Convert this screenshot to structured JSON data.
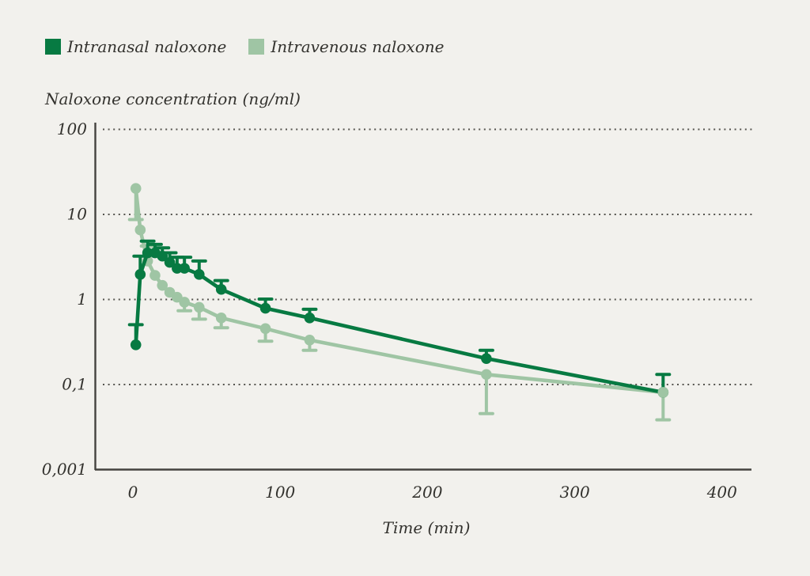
{
  "figure": {
    "background_color": "#f2f1ed",
    "text_color": "#33322e",
    "axis_color": "#44433f",
    "grid_color": "#55544e"
  },
  "legend": {
    "position": "top-left",
    "items": [
      {
        "label": "Intranasal naloxone",
        "color": "#077a42",
        "swatch": "square"
      },
      {
        "label": "Intravenous naloxone",
        "color": "#9fc5a4",
        "swatch": "square"
      }
    ]
  },
  "chart_data": {
    "type": "line",
    "title": "Naloxone concentration (ng/ml)",
    "ylabel": "Naloxone concentration (ng/ml)",
    "xlabel": "Time (min)",
    "y_scale": "log",
    "grid": "dotted-horizontal",
    "legend_position": "top-left",
    "xlim": [
      0,
      400
    ],
    "x_ticks": [
      0,
      100,
      200,
      300,
      400
    ],
    "y_ticks": [
      {
        "label": "100",
        "value": 100,
        "grid": true,
        "at_axis_base": false
      },
      {
        "label": "10",
        "value": 10,
        "grid": true,
        "at_axis_base": false
      },
      {
        "label": "1",
        "value": 1,
        "grid": true,
        "at_axis_base": false
      },
      {
        "label": "0,1",
        "value": 0.1,
        "grid": true,
        "at_axis_base": false
      },
      {
        "label": "0,001",
        "value": 0.001,
        "grid": false,
        "at_axis_base": true
      }
    ],
    "x": [
      2,
      5,
      10,
      15,
      20,
      25,
      30,
      35,
      45,
      60,
      90,
      120,
      240,
      360
    ],
    "series": [
      {
        "name": "Intravenous naloxone",
        "color": "#9fc5a4",
        "values": [
          20,
          6.5,
          2.8,
          1.9,
          1.45,
          1.2,
          1.05,
          0.92,
          0.8,
          0.6,
          0.45,
          0.33,
          0.13,
          0.08
        ],
        "err_low": [
          8.6,
          null,
          null,
          null,
          null,
          null,
          null,
          0.73,
          0.58,
          0.46,
          0.32,
          0.25,
          0.045,
          0.038
        ],
        "err_high": [
          null,
          null,
          4.2,
          null,
          null,
          null,
          null,
          null,
          null,
          null,
          null,
          null,
          null,
          null
        ]
      },
      {
        "name": "Intranasal naloxone",
        "color": "#077a42",
        "values": [
          0.29,
          1.95,
          3.5,
          3.5,
          3.2,
          2.7,
          2.3,
          2.3,
          1.95,
          1.3,
          0.78,
          0.6,
          0.2,
          0.08
        ],
        "err_low": [
          null,
          null,
          null,
          null,
          null,
          null,
          null,
          null,
          null,
          null,
          null,
          null,
          null,
          null
        ],
        "err_high": [
          0.5,
          3.2,
          4.8,
          4.4,
          4.0,
          3.5,
          3.1,
          3.1,
          2.8,
          1.65,
          1.0,
          0.76,
          0.25,
          0.13
        ]
      }
    ]
  }
}
